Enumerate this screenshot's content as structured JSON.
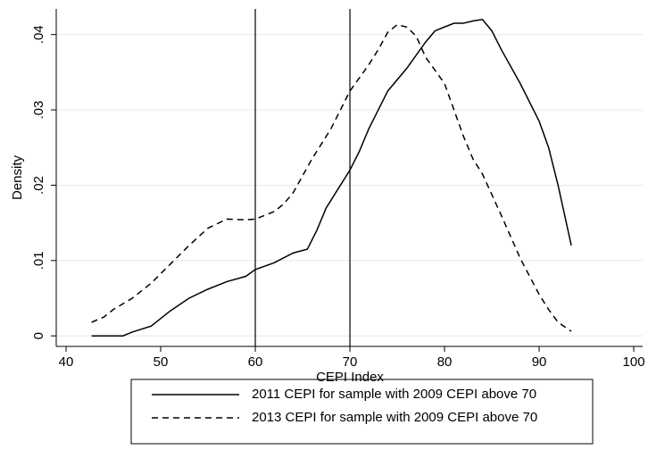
{
  "chart_data": {
    "type": "line",
    "x_label": "CEPI Index",
    "y_label": "Density",
    "xlim": [
      38.96,
      100.94
    ],
    "xticks": [
      40,
      50,
      60,
      70,
      80,
      90,
      100
    ],
    "ylim": [
      -0.0014,
      0.0434
    ],
    "yticks": [
      0,
      {
        "value": 0.01,
        "label": ".01"
      },
      {
        "value": 0.02,
        "label": ".02"
      },
      {
        "value": 0.03,
        "label": ".03"
      },
      {
        "value": 0.04,
        "label": ".04"
      }
    ],
    "grid": true,
    "xlines": [
      60,
      70
    ],
    "series": [
      {
        "name": "2011 CEPI for sample with 2009 CEPI above 70",
        "color": "#000000",
        "dashed": false,
        "x": [
          42.7,
          46,
          47,
          49,
          51,
          53,
          55,
          57,
          59,
          60,
          62,
          64,
          65.5,
          66.5,
          67.5,
          69,
          70,
          71,
          72,
          74,
          76,
          78,
          79,
          80,
          81,
          82,
          83,
          84,
          85,
          86,
          88,
          90,
          91,
          92,
          93.4
        ],
        "values": [
          0,
          0,
          0.0005,
          0.0013,
          0.0033,
          0.005,
          0.0062,
          0.0072,
          0.0079,
          0.0088,
          0.0097,
          0.011,
          0.0115,
          0.014,
          0.017,
          0.02,
          0.022,
          0.0245,
          0.0275,
          0.0325,
          0.0355,
          0.039,
          0.0405,
          0.041,
          0.0415,
          0.0415,
          0.0418,
          0.042,
          0.0405,
          0.038,
          0.0335,
          0.0285,
          0.025,
          0.02,
          0.012
        ]
      },
      {
        "name": "2013 CEPI for sample with 2009 CEPI above 70",
        "color": "#000000",
        "dashed": true,
        "x": [
          42.7,
          44,
          45,
          47,
          49,
          51,
          53,
          55,
          57,
          59,
          60,
          62,
          63,
          64,
          66,
          68,
          70,
          72,
          73,
          74,
          75,
          76,
          77,
          78,
          80,
          82,
          83,
          84,
          86,
          88,
          90,
          91,
          92,
          93.4
        ],
        "values": [
          0.0018,
          0.0025,
          0.0035,
          0.005,
          0.007,
          0.0095,
          0.012,
          0.0143,
          0.0155,
          0.0154,
          0.0155,
          0.0165,
          0.0175,
          0.019,
          0.0235,
          0.0275,
          0.0325,
          0.036,
          0.038,
          0.0403,
          0.0413,
          0.041,
          0.0398,
          0.037,
          0.0335,
          0.0265,
          0.0235,
          0.0215,
          0.016,
          0.0103,
          0.0055,
          0.0035,
          0.0018,
          0.0006
        ]
      }
    ]
  }
}
